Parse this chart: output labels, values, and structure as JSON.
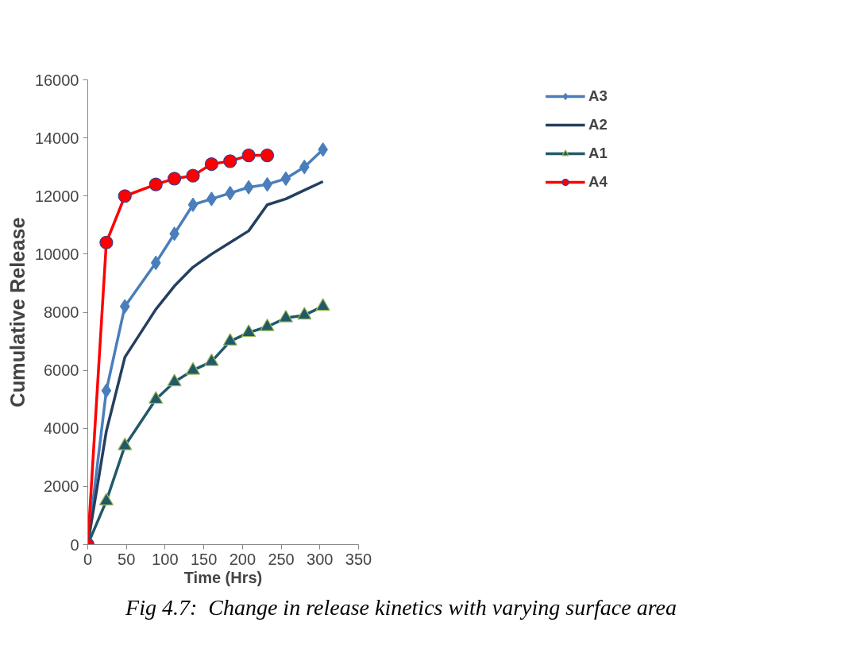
{
  "chart_data": {
    "type": "line",
    "xlabel": "Time (Hrs)",
    "ylabel": "Cumulative Release",
    "annotations": [
      "Fig 4.7:  Change in release kinetics with varying surface area"
    ],
    "x": [
      0,
      24,
      48,
      88,
      112,
      136,
      160,
      184,
      208,
      232,
      256,
      280,
      304
    ],
    "series": [
      {
        "name": "A3",
        "color": "#4a7ebb",
        "marker": "diamond",
        "values": [
          0,
          5300,
          8200,
          9700,
          10700,
          11700,
          11900,
          12100,
          12300,
          12400,
          12600,
          13000,
          13600
        ]
      },
      {
        "name": "A2",
        "color": "#243f60",
        "marker": "none",
        "values": [
          0,
          3900,
          6450,
          8100,
          8900,
          9550,
          10000,
          10400,
          10800,
          11700,
          11900,
          12200,
          12500
        ]
      },
      {
        "name": "A1",
        "color": "#215968",
        "marker": "triangle",
        "values": [
          0,
          1500,
          3400,
          5000,
          5600,
          6000,
          6300,
          7000,
          7300,
          7500,
          7800,
          7900,
          8200
        ]
      },
      {
        "name": "A4",
        "color": "#ff0000",
        "marker": "circle",
        "values": [
          0,
          10400,
          12000,
          12400,
          12600,
          12700,
          13100,
          13200,
          13400,
          13400,
          null,
          null,
          null
        ]
      }
    ],
    "xlim": [
      0,
      350
    ],
    "ylim": [
      0,
      16000
    ],
    "xticks": [
      0,
      50,
      100,
      150,
      200,
      250,
      300,
      350
    ],
    "yticks": [
      0,
      2000,
      4000,
      6000,
      8000,
      10000,
      12000,
      14000,
      16000
    ],
    "grid": false,
    "legend": "right",
    "line_style": "solid"
  }
}
